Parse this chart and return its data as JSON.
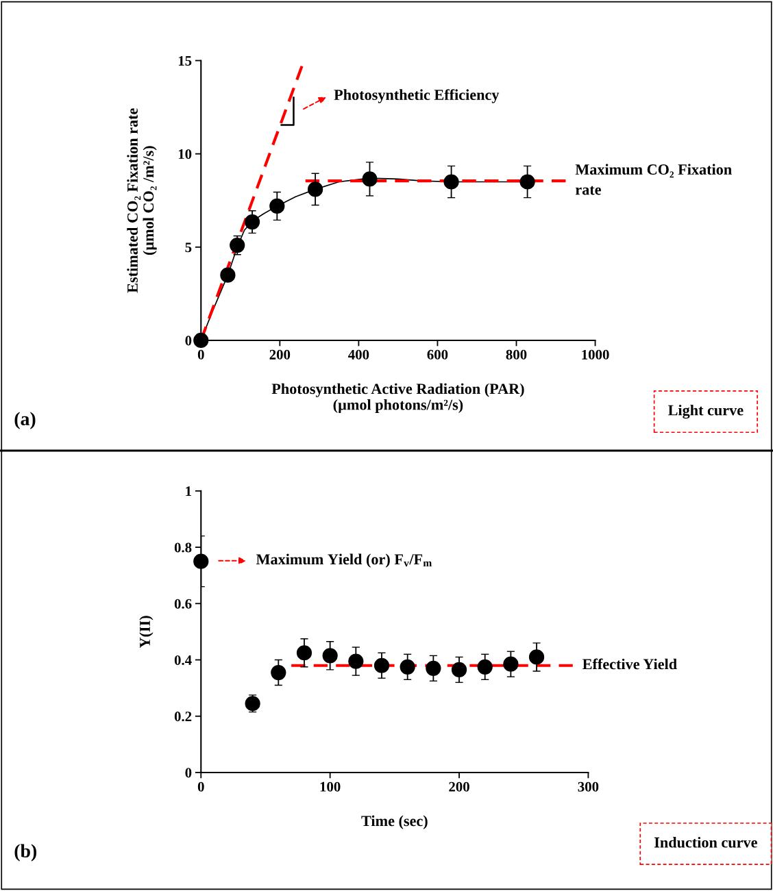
{
  "chart_data": [
    {
      "type": "scatter",
      "xlabel": "Photosynthetic Active Radiation (PAR)\n(µmol photons/m²/s)",
      "ylabel": "Estimated CO₂ Fixation rate\n(µmol CO₂ /m²/s)",
      "xlim": [
        0,
        1000
      ],
      "xticks": [
        0,
        200,
        400,
        600,
        800,
        1000
      ],
      "ylim": [
        0,
        15
      ],
      "yticks": [
        0,
        5,
        10,
        15
      ],
      "grid": false,
      "legend": false,
      "series": [
        {
          "type": "line",
          "color": "#000000",
          "line_style": "solid",
          "marker": "none",
          "x": [
            0,
            30,
            68,
            92,
            110,
            130,
            160,
            193,
            240,
            290,
            350,
            428,
            500,
            560,
            635,
            828
          ],
          "values": [
            0,
            1.6,
            3.5,
            5.0,
            5.9,
            6.4,
            6.8,
            7.2,
            7.7,
            8.1,
            8.5,
            8.7,
            8.65,
            8.55,
            8.5,
            8.5
          ]
        },
        {
          "type": "line",
          "color": "#ff0000",
          "line_style": "dashed",
          "marker": "none",
          "x": [
            0,
            256
          ],
          "values": [
            0,
            14.7
          ]
        },
        {
          "type": "line",
          "color": "#ff0000",
          "line_style": "dashed",
          "marker": "none",
          "x": [
            265,
            925
          ],
          "values": [
            8.55,
            8.55
          ]
        },
        {
          "color": "#000000",
          "marker": "circle",
          "x": [
            0,
            68,
            92,
            130,
            193,
            290,
            428,
            635,
            828
          ],
          "values": [
            0,
            3.5,
            5.1,
            6.35,
            7.2,
            8.1,
            8.65,
            8.5,
            8.5
          ],
          "errors": [
            null,
            null,
            0.5,
            0.6,
            0.75,
            0.85,
            0.9,
            0.85,
            0.85
          ]
        }
      ],
      "annotations": [
        "Photosynthetic Efficiency",
        {
          "text": "Maximum CO₂ Fixation\nrate",
          "x": 925,
          "y": 8.55
        },
        "(a)",
        "Light curve"
      ]
    },
    {
      "type": "scatter",
      "xlabel": "Time (sec)",
      "ylabel": "Y(II)",
      "xlim": [
        0,
        300
      ],
      "xticks": [
        0,
        100,
        200,
        300
      ],
      "ylim": [
        0,
        1
      ],
      "yticks": [
        0,
        0.2,
        0.4,
        0.6,
        0.8,
        1
      ],
      "grid": false,
      "legend": false,
      "series": [
        {
          "type": "line",
          "color": "#ff0000",
          "line_style": "dashed",
          "marker": "none",
          "x": [
            70,
            288
          ],
          "values": [
            0.38,
            0.38
          ]
        },
        {
          "color": "#000000",
          "marker": "circle",
          "x": [
            0,
            40,
            60,
            80,
            100,
            120,
            140,
            160,
            180,
            200,
            220,
            240,
            260
          ],
          "values": [
            0.75,
            0.245,
            0.355,
            0.425,
            0.415,
            0.395,
            0.38,
            0.375,
            0.37,
            0.365,
            0.375,
            0.385,
            0.41
          ],
          "errors": [
            0.09,
            0.03,
            0.045,
            0.05,
            0.05,
            0.05,
            0.045,
            0.045,
            0.045,
            0.045,
            0.045,
            0.045,
            0.05
          ]
        }
      ],
      "annotations": [
        "Maximum Yield (or) F$_{v}$/F$_{m}$",
        {
          "text": "Effective Yield",
          "x": 288,
          "y": 0.38
        },
        "(b)",
        "Induction curve"
      ]
    }
  ]
}
